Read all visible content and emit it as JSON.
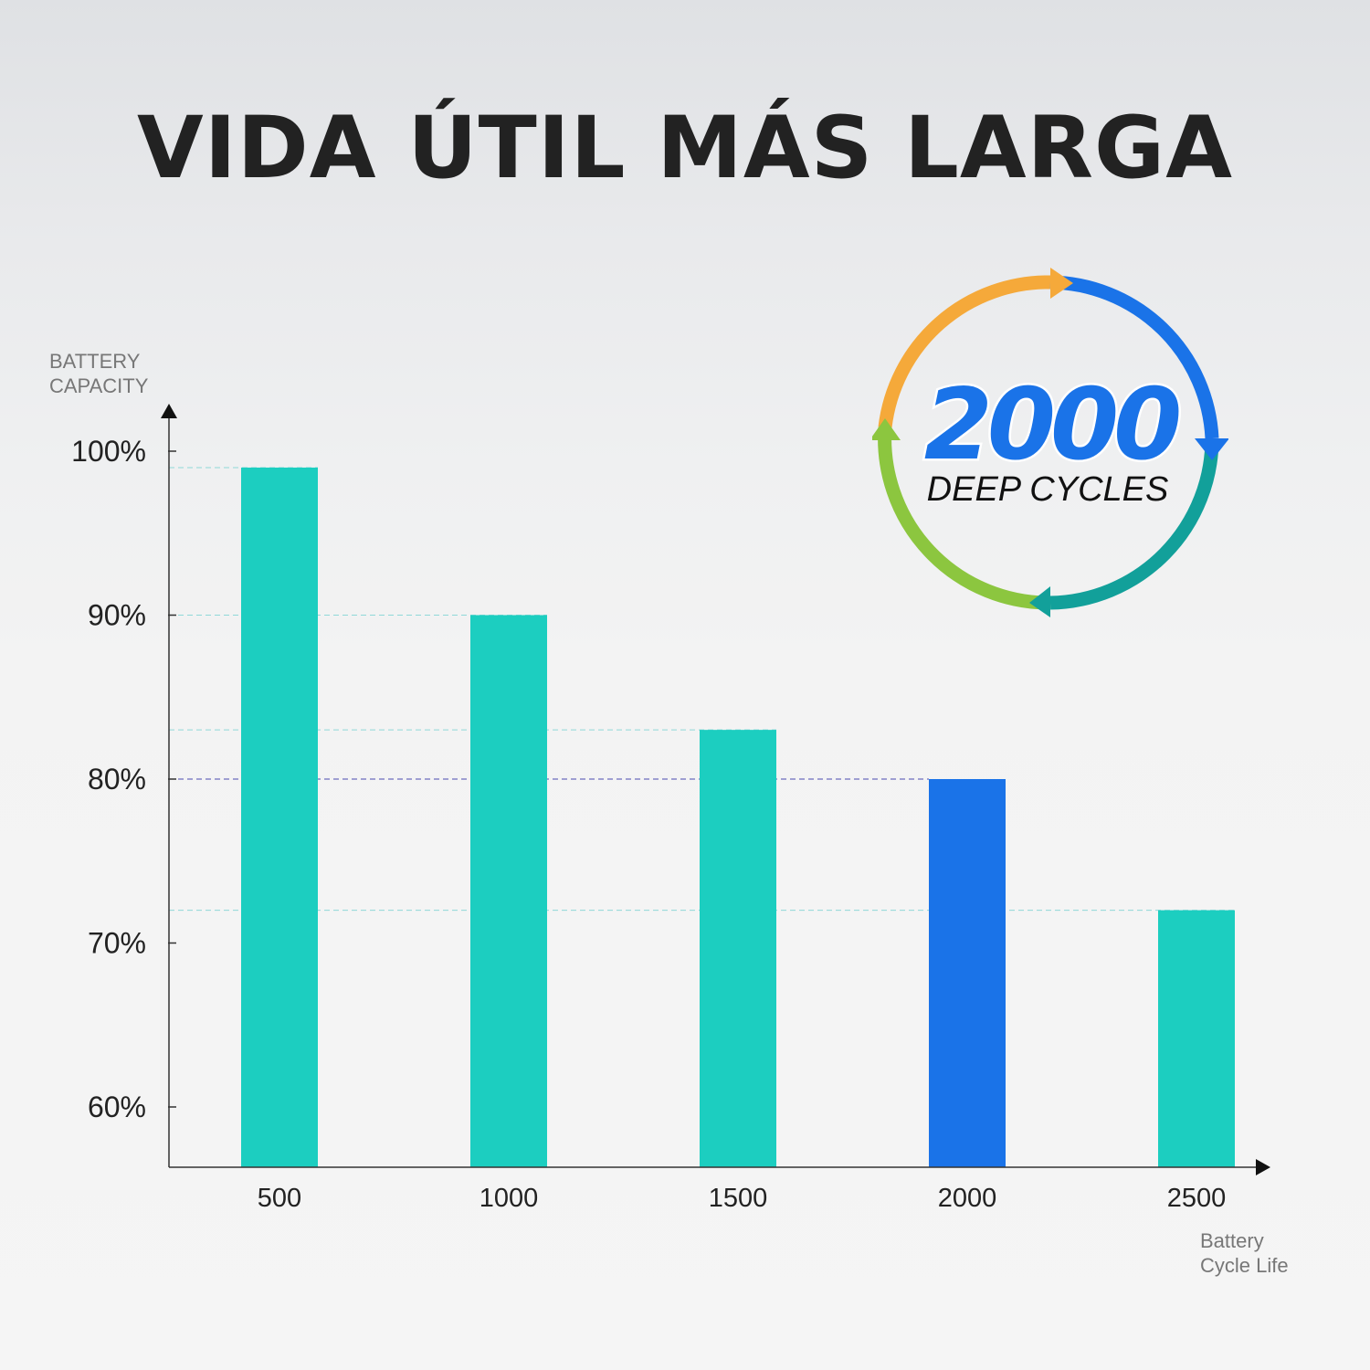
{
  "title": "VIDA ÚTIL MÁS LARGA",
  "badge": {
    "number": "2000",
    "label": "DEEP CYCLES"
  },
  "chart_data": {
    "type": "bar",
    "ylabel": "BATTERY CAPACITY",
    "xlabel": "Battery Cycle Life",
    "categories": [
      "500",
      "1000",
      "1500",
      "2000",
      "2500"
    ],
    "values": [
      99,
      90,
      83,
      80,
      72
    ],
    "ytick_labels": [
      "100%",
      "90%",
      "80%",
      "70%",
      "60%"
    ],
    "yticks": [
      100,
      90,
      80,
      70,
      60
    ],
    "ylim": [
      56.3,
      100
    ],
    "highlight_category": "2000",
    "grid": false,
    "colors": {
      "bar": "#1ccec0",
      "highlight_bar": "#1a73e8",
      "axis": "#333333",
      "guide_line": "#8fd8d8",
      "highlight_guide_line": "#4a4ab0"
    }
  },
  "badge_colors": {
    "orange": "#f5a93a",
    "blue": "#1a73e8",
    "teal": "#12a09a",
    "green": "#8cc63f",
    "number": "#1a73e8",
    "text": "#111111"
  }
}
